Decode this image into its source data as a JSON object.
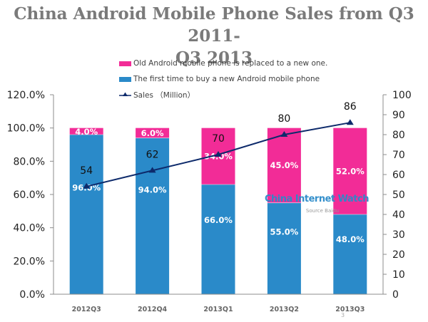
{
  "title": "China Android Mobile Phone Sales from Q3 2011-Q3 2013",
  "title_lines": [
    "China Android Mobile Phone Sales from Q3 2011-",
    "Q3 2013"
  ],
  "watermark": {
    "text": "China Internet Watch",
    "source": "Source Baidu"
  },
  "page_number": "3",
  "colors": {
    "replaced": "#F22C97",
    "first_time": "#2A8AC9",
    "sales_line": "#0D2A6B",
    "axis": "#8c8c8c",
    "title": "#7a7a7a"
  },
  "chart_data": {
    "type": "bar",
    "stacked": true,
    "title": "China Android Mobile Phone Sales from Q3 2011-Q3 2013",
    "categories": [
      "2012Q3",
      "2012Q4",
      "2013Q1",
      "2013Q2",
      "2013Q3"
    ],
    "series": [
      {
        "name": "The first time to buy a new Android mobile phone",
        "type": "bar",
        "axis": "left",
        "values": [
          96.0,
          94.0,
          66.0,
          55.0,
          48.0
        ],
        "labels": [
          "96.0%",
          "94.0%",
          "66.0%",
          "55.0%",
          "48.0%"
        ]
      },
      {
        "name": "Old Android mobile phone is replaced to a new one.",
        "type": "bar",
        "axis": "left",
        "values": [
          4.0,
          6.0,
          34.0,
          45.0,
          52.0
        ],
        "labels": [
          "4.0%",
          "6.0%",
          "34.0%",
          "45.0%",
          "52.0%"
        ]
      },
      {
        "name": "Sales （Million）",
        "type": "line",
        "axis": "right",
        "marker": "triangle",
        "values": [
          54,
          62,
          70,
          80,
          86
        ],
        "labels": [
          "54",
          "62",
          "70",
          "80",
          "86"
        ]
      }
    ],
    "legend": [
      "Old Android mobile phone is replaced to a new one.",
      "The first time to buy a new Android mobile phone",
      "Sales （Million）"
    ],
    "legend_position": "top-center",
    "y_left": {
      "range": [
        0,
        120
      ],
      "ticks": [
        "0.0%",
        "20.0%",
        "40.0%",
        "60.0%",
        "80.0%",
        "100.0%",
        "120.0%"
      ],
      "tick_values": [
        0,
        20,
        40,
        60,
        80,
        100,
        120
      ]
    },
    "y_right": {
      "range": [
        0,
        100
      ],
      "ticks": [
        "0",
        "10",
        "20",
        "30",
        "40",
        "50",
        "60",
        "70",
        "80",
        "90",
        "100"
      ],
      "tick_values": [
        0,
        10,
        20,
        30,
        40,
        50,
        60,
        70,
        80,
        90,
        100
      ]
    },
    "xlabel": "",
    "ylabel": "",
    "grid": false
  }
}
